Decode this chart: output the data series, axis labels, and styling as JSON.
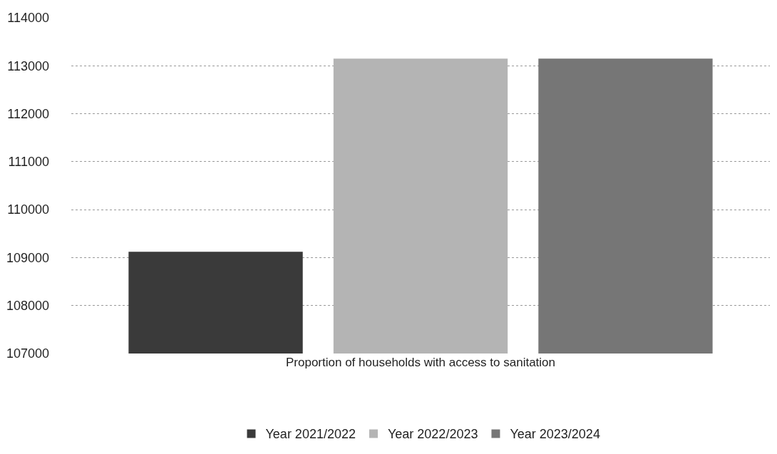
{
  "chart_data": {
    "type": "bar",
    "categories": [
      "Proportion of households with access to sanitation"
    ],
    "series": [
      {
        "name": "Year 2021/2022",
        "color": "#3a3a3a",
        "values": [
          109120
        ]
      },
      {
        "name": "Year 2022/2023",
        "color": "#b4b4b4",
        "values": [
          113150
        ]
      },
      {
        "name": "Year 2023/2024",
        "color": "#767676",
        "values": [
          113150
        ]
      }
    ],
    "ylim": [
      107000,
      114000
    ],
    "yticks": [
      107000,
      108000,
      109000,
      110000,
      111000,
      112000,
      113000,
      114000
    ],
    "grid": "y",
    "legend": "bottom"
  }
}
